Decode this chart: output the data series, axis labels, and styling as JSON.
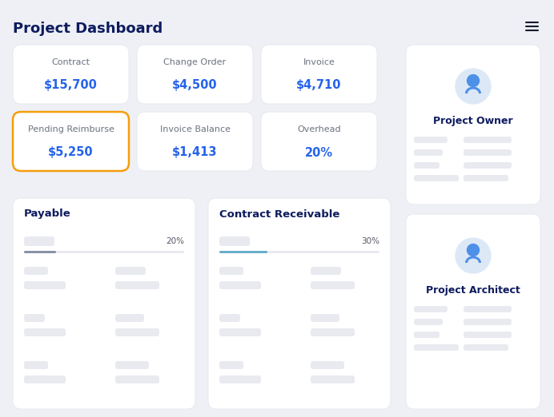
{
  "title": "Project Dashboard",
  "title_color": "#0d1b5e",
  "background": "#eef0f6",
  "card_bg": "#ffffff",
  "metrics": [
    {
      "label": "Contract",
      "value": "$15,700",
      "row": 0,
      "col": 0,
      "highlight": false
    },
    {
      "label": "Change Order",
      "value": "$4,500",
      "row": 0,
      "col": 1,
      "highlight": false
    },
    {
      "label": "Invoice",
      "value": "$4,710",
      "row": 0,
      "col": 2,
      "highlight": false
    },
    {
      "label": "Pending Reimburse",
      "value": "$5,250",
      "row": 1,
      "col": 0,
      "highlight": true
    },
    {
      "label": "Invoice Balance",
      "value": "$1,413",
      "row": 1,
      "col": 1,
      "highlight": false
    },
    {
      "label": "Overhead",
      "value": "20%",
      "row": 1,
      "col": 2,
      "highlight": false
    }
  ],
  "value_color": "#2563eb",
  "highlight_border": "#f59e0b",
  "label_color": "#6b7280",
  "payable_pct": 20,
  "receivable_pct": 30,
  "bar_bg": "#e8eaf0",
  "payable_bar_color": "#8892a8",
  "receivable_bar_color": "#67afc8",
  "placeholder_color": "#e8eaf0",
  "icon_color": "#4d90e8",
  "icon_bg": "#dde8f7",
  "menu_color": "#1a1a2e",
  "card_edge": "#e8eaf0",
  "bottom_label_color": "#0d1b5e"
}
